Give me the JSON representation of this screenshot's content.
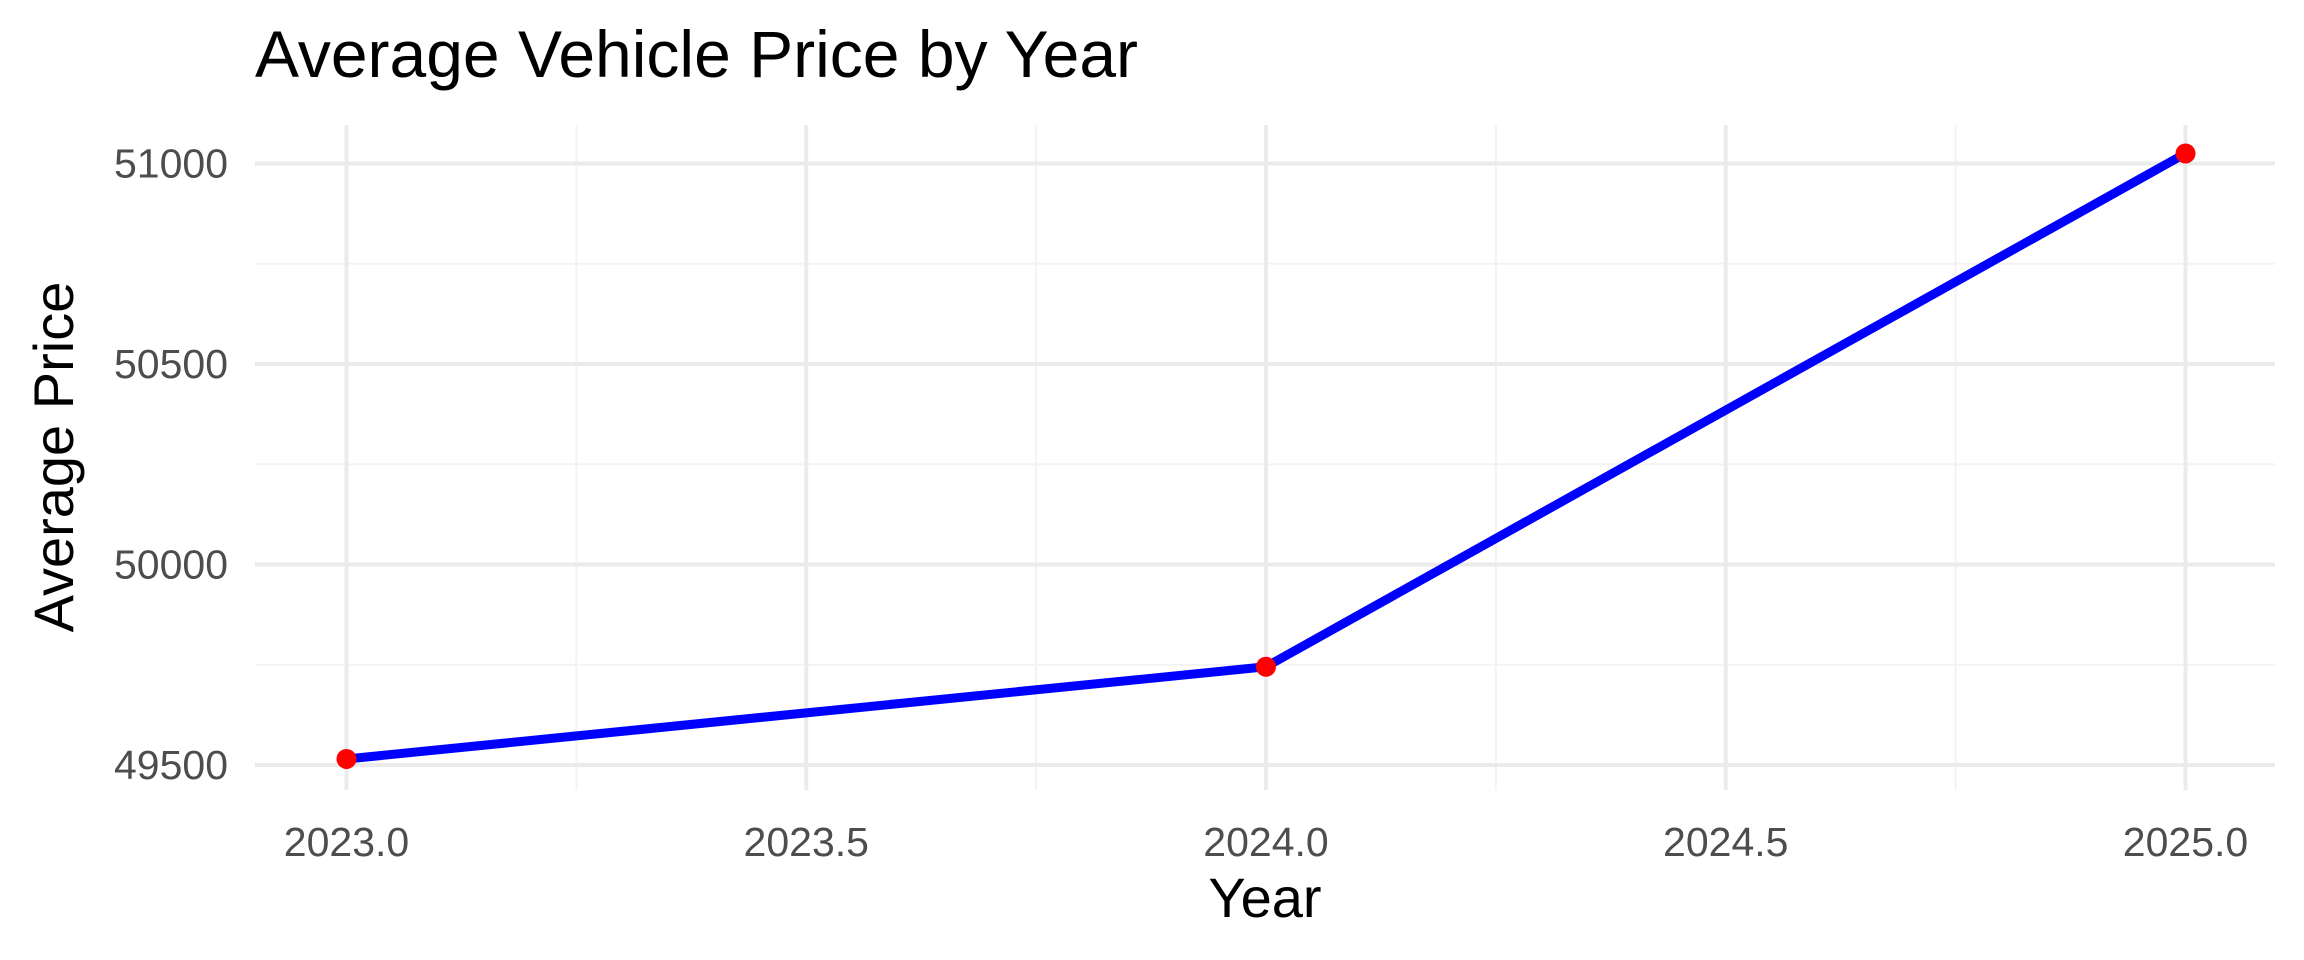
{
  "chart_data": {
    "type": "line",
    "title": "Average Vehicle Price by Year",
    "xlabel": "Year",
    "ylabel": "Average Price",
    "x": [
      2023,
      2024,
      2025
    ],
    "series": [
      {
        "values": [
          49515,
          49745,
          51025
        ]
      }
    ],
    "xlim": [
      2022.9,
      2025.1
    ],
    "ylim": [
      49460,
      51100
    ],
    "x_ticks": [
      2023.0,
      2023.5,
      2024.0,
      2024.5,
      2025.0
    ],
    "x_tick_labels": [
      "2023.0",
      "2023.5",
      "2024.0",
      "2024.5",
      "2025.0"
    ],
    "y_ticks": [
      49500,
      50000,
      50500,
      51000
    ],
    "y_tick_labels": [
      "49500",
      "50000",
      "50500",
      "51000"
    ],
    "grid": true,
    "legend": "none",
    "line_color": "#0000ff",
    "point_color": "#ff0000",
    "grid_color": "#ebebeb"
  }
}
